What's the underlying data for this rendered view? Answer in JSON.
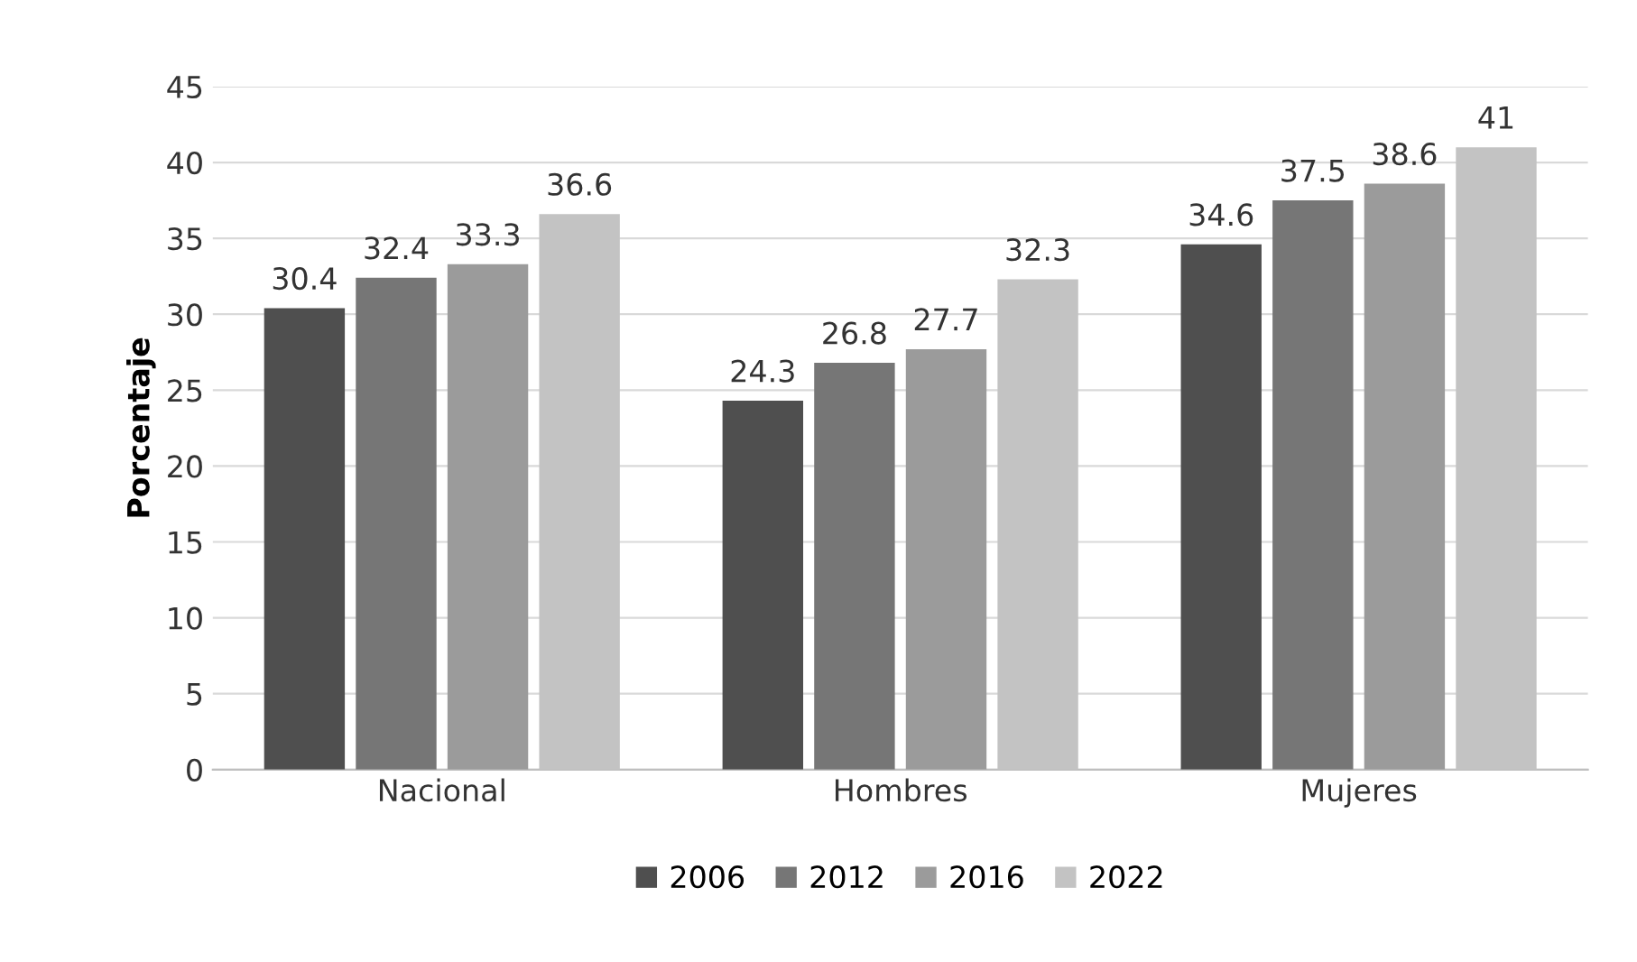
{
  "chart_data": {
    "type": "bar",
    "ylabel": "Porcentaje",
    "categories": [
      "Nacional",
      "Hombres",
      "Mujeres"
    ],
    "series": [
      {
        "name": "2006",
        "color": "#4f4f4f",
        "values": [
          30.4,
          24.3,
          34.6
        ]
      },
      {
        "name": "2012",
        "color": "#767676",
        "values": [
          32.4,
          26.8,
          37.5
        ]
      },
      {
        "name": "2016",
        "color": "#9b9b9b",
        "values": [
          33.3,
          27.7,
          38.6
        ]
      },
      {
        "name": "2022",
        "color": "#c3c3c3",
        "values": [
          36.6,
          32.3,
          41
        ]
      }
    ],
    "ylim": [
      0,
      45
    ],
    "yticks": [
      0,
      5,
      10,
      15,
      20,
      25,
      30,
      35,
      40,
      45
    ],
    "grid": "y",
    "legend": "bottom",
    "data_labels": true
  }
}
